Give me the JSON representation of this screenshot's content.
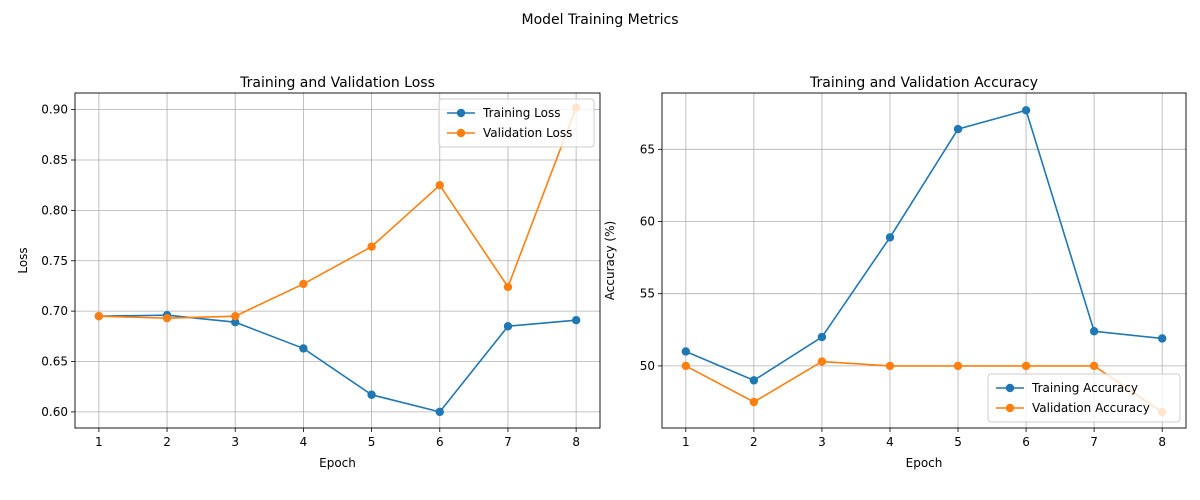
{
  "figure": {
    "suptitle": "Model Training Metrics"
  },
  "colors": {
    "series_1": "#1f77b4",
    "series_2": "#ff7f0e",
    "grid": "#b0b0b0"
  },
  "chart_data": [
    {
      "type": "line",
      "title": "Training and Validation Loss",
      "xlabel": "Epoch",
      "ylabel": "Loss",
      "x": [
        1,
        2,
        3,
        4,
        5,
        6,
        7,
        8
      ],
      "xlim": [
        0.65,
        8.35
      ],
      "ylim": [
        0.584,
        0.9165
      ],
      "xticks": [
        1,
        2,
        3,
        4,
        5,
        6,
        7,
        8
      ],
      "yticks": [
        "0.60",
        "0.65",
        "0.70",
        "0.75",
        "0.80",
        "0.85",
        "0.90"
      ],
      "grid": true,
      "legend": "upper right",
      "series": [
        {
          "name": "Training Loss",
          "values": [
            0.695,
            0.696,
            0.689,
            0.663,
            0.617,
            0.6,
            0.685,
            0.691
          ]
        },
        {
          "name": "Validation Loss",
          "values": [
            0.695,
            0.693,
            0.695,
            0.727,
            0.764,
            0.825,
            0.724,
            0.902
          ]
        }
      ]
    },
    {
      "type": "line",
      "title": "Training and Validation Accuracy",
      "xlabel": "Epoch",
      "ylabel": "Accuracy (%)",
      "x": [
        1,
        2,
        3,
        4,
        5,
        6,
        7,
        8
      ],
      "xlim": [
        0.65,
        8.35
      ],
      "ylim": [
        45.7,
        68.9
      ],
      "xticks": [
        1,
        2,
        3,
        4,
        5,
        6,
        7,
        8
      ],
      "yticks": [
        "50",
        "55",
        "60",
        "65"
      ],
      "grid": true,
      "legend": "lower right",
      "series": [
        {
          "name": "Training Accuracy",
          "values": [
            51.0,
            49.0,
            52.0,
            58.9,
            66.4,
            67.7,
            52.4,
            51.9
          ]
        },
        {
          "name": "Validation Accuracy",
          "values": [
            50.0,
            47.5,
            50.3,
            50.0,
            50.0,
            50.0,
            50.0,
            46.8
          ]
        }
      ]
    }
  ]
}
